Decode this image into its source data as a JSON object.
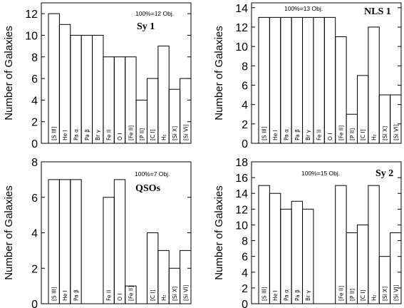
{
  "chart_data": [
    {
      "type": "bar",
      "title": "Sy 1",
      "annotation": "100%=12 Obj.",
      "ylabel": "Number of Galaxies",
      "ylim": [
        0,
        13
      ],
      "yticks": [
        0,
        2,
        4,
        6,
        8,
        10,
        12
      ],
      "categories": [
        "[S III]",
        "He I",
        "Pa α",
        "Pa β",
        "Br γ",
        "Fe II",
        "O I",
        "[Fe II]",
        "[P II]",
        "[C I]",
        "H₂",
        "[Si X]",
        "[Si VI]"
      ],
      "values": [
        12,
        11,
        10,
        10,
        10,
        8,
        8,
        8,
        4,
        6,
        9,
        5,
        6
      ],
      "labeled": [
        true,
        true,
        true,
        true,
        true,
        true,
        true,
        true,
        true,
        true,
        true,
        true,
        true
      ]
    },
    {
      "type": "bar",
      "title": "NLS 1",
      "annotation": "100%=13 Obj.",
      "ylabel": "Number of Galaxies",
      "ylim": [
        0,
        14.5
      ],
      "yticks": [
        0,
        2,
        4,
        6,
        8,
        10,
        12,
        14
      ],
      "categories": [
        "[S III]",
        "He I",
        "Pa α",
        "Pa β",
        "Br γ",
        "Fe II",
        "O I",
        "[Fe II]",
        "[P II]",
        "[C I]",
        "H₂",
        "[Si X]",
        "[Si VI]"
      ],
      "values": [
        13,
        13,
        13,
        13,
        13,
        13,
        13,
        11,
        3,
        7,
        12,
        5,
        5
      ],
      "labeled": [
        true,
        true,
        true,
        true,
        true,
        true,
        true,
        true,
        true,
        true,
        true,
        true,
        true
      ]
    },
    {
      "type": "bar",
      "title": "QSOs",
      "annotation": "100%=7 Obj.",
      "ylabel": "Number of Galaxies",
      "ylim": [
        0,
        8
      ],
      "yticks": [
        0,
        2,
        4,
        6,
        8
      ],
      "categories": [
        "[S III]",
        "He I",
        "Pa β",
        "",
        "",
        "Fe II",
        "O I",
        "[Fe II]",
        "",
        "[C I]",
        "H₂",
        "[Si X]",
        "[Si VI]"
      ],
      "values": [
        7,
        7,
        7,
        0,
        0,
        6,
        7,
        1,
        0,
        4,
        3,
        2,
        3
      ],
      "labeled": [
        true,
        true,
        true,
        false,
        false,
        true,
        true,
        true,
        false,
        true,
        true,
        true,
        true
      ]
    },
    {
      "type": "bar",
      "title": "Sy 2",
      "annotation": "100%=15 Obj.",
      "ylabel": "Number of Galaxies",
      "ylim": [
        0,
        18
      ],
      "yticks": [
        0,
        2,
        4,
        6,
        8,
        10,
        12,
        14,
        16,
        18
      ],
      "categories": [
        "[S III]",
        "He I",
        "Pa α",
        "Pa β",
        "Br γ",
        "",
        "",
        "[Fe II]",
        "[P II]",
        "[C I]",
        "H₂",
        "[Si X]",
        "[Si VI]"
      ],
      "values": [
        15,
        14,
        12,
        13,
        12,
        0,
        0,
        15,
        9,
        10,
        15,
        6,
        9
      ],
      "labeled": [
        true,
        true,
        true,
        true,
        true,
        false,
        false,
        true,
        true,
        true,
        true,
        true,
        true
      ]
    }
  ]
}
